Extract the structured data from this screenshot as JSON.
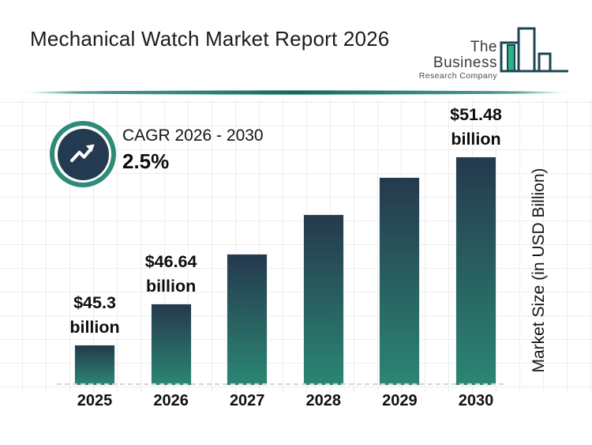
{
  "header": {
    "title": "Mechanical Watch Market Report 2026",
    "logo": {
      "line1": "The Business",
      "line2": "Research Company"
    }
  },
  "cagr": {
    "label": "CAGR 2026 - 2030",
    "value": "2.5%",
    "icon": "trending-up-icon"
  },
  "chart_data": {
    "type": "bar",
    "title": "Mechanical Watch Market Report 2026",
    "categories": [
      "2025",
      "2026",
      "2027",
      "2028",
      "2029",
      "2030"
    ],
    "values": [
      45.3,
      46.64,
      48.3,
      49.6,
      50.8,
      51.48
    ],
    "value_labels": [
      {
        "line1": "$45.3",
        "line2": "billion"
      },
      {
        "line1": "$46.64",
        "line2": "billion"
      },
      null,
      null,
      null,
      {
        "line1": "$51.48",
        "line2": "billion"
      }
    ],
    "xlabel": "",
    "ylabel": "Market Size (in USD Billion)",
    "ylim": [
      44,
      51.8
    ],
    "grid": true,
    "legend": "none",
    "baseline_style": "dashed",
    "bar_color_top": "#25394d",
    "bar_color_bottom": "#2b8673"
  },
  "colors": {
    "divider_teal_dark": "#0f6c5c",
    "divider_teal_light": "#2e8d7c",
    "badge_ring": "#2e8b77",
    "badge_fill": "#243a50",
    "logo_outline": "#1c4553",
    "logo_green": "#2ab386"
  }
}
